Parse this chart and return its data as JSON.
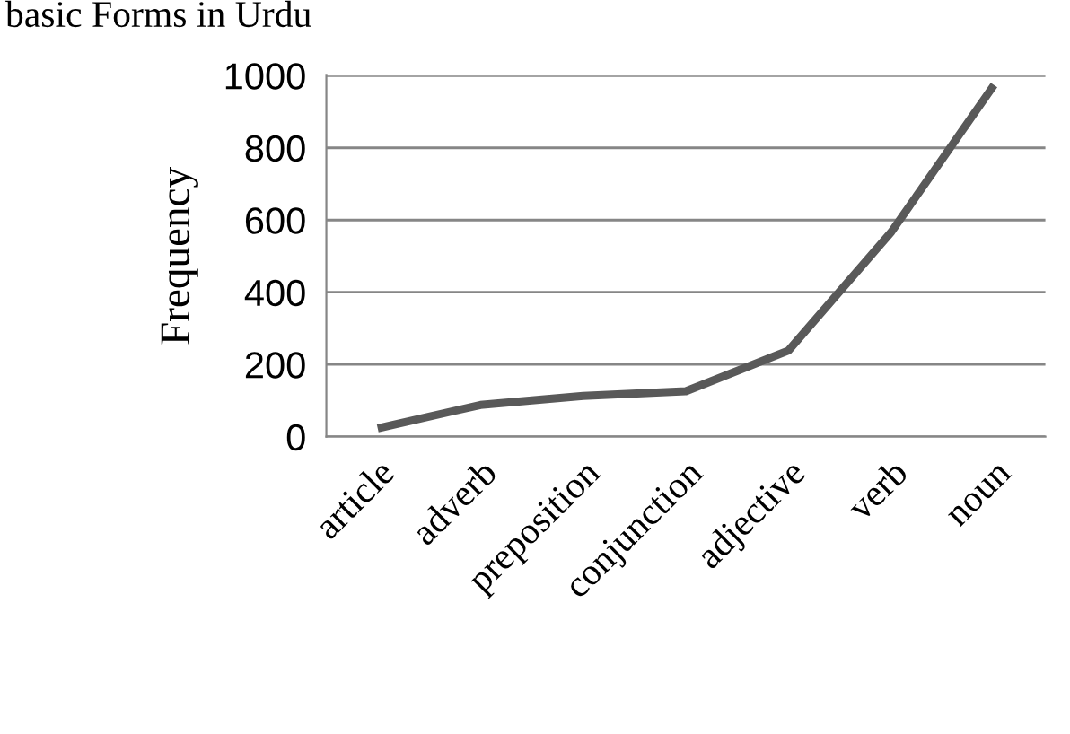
{
  "chart_data": {
    "type": "line",
    "title": "basic Forms in Urdu",
    "ylabel": "Frequency",
    "categories": [
      "article",
      "adverb",
      "preposition",
      "conjunction",
      "adjective",
      "verb",
      "noun"
    ],
    "series": [
      {
        "color": "#595959",
        "values": [
          23,
          88,
          113,
          126,
          239,
          567,
          974
        ]
      }
    ],
    "ylim": [
      0,
      1000
    ],
    "yticks": [
      0,
      200,
      400,
      600,
      800,
      1000
    ],
    "grid": "y",
    "marker": "none",
    "line_style": "solid"
  }
}
